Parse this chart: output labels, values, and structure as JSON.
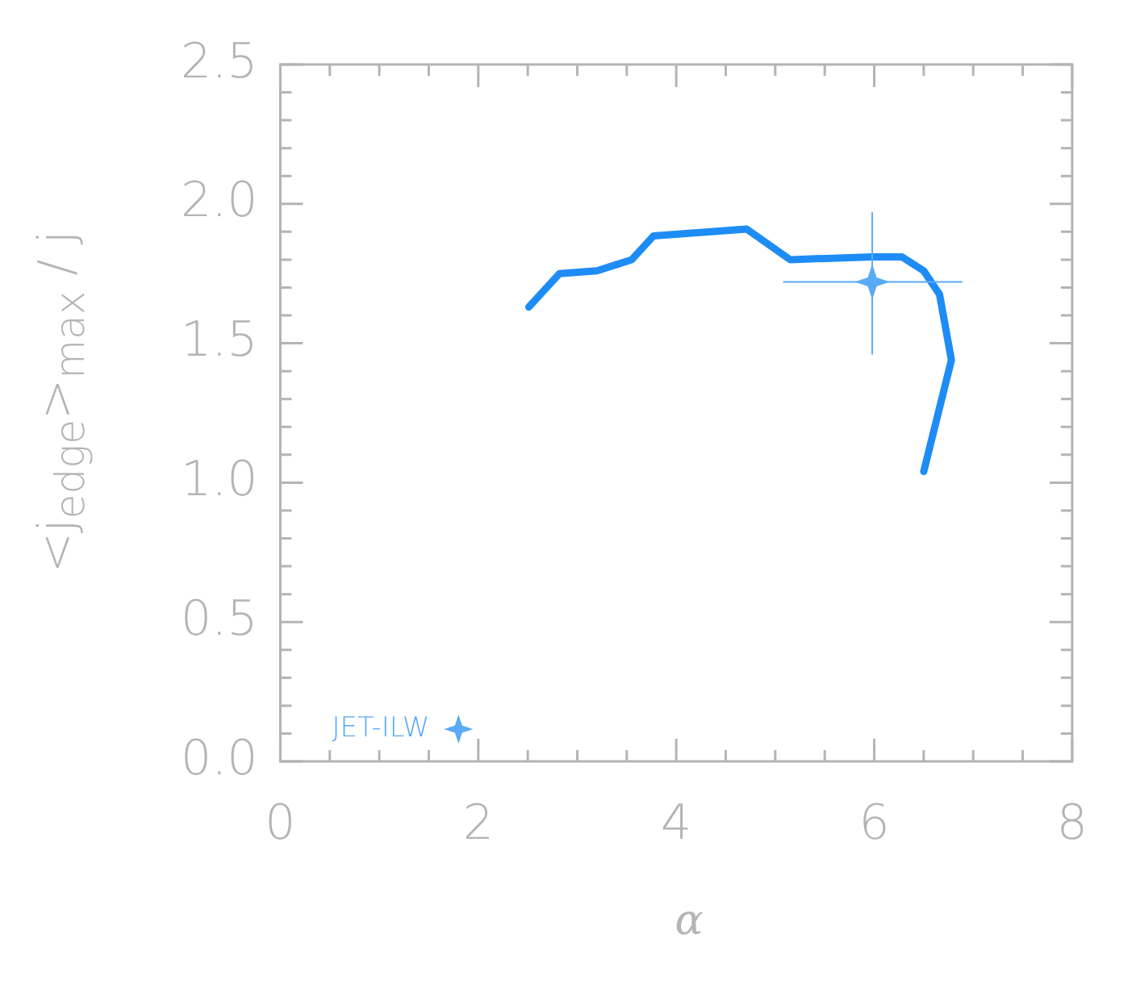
{
  "chart_data": {
    "type": "line",
    "xlabel": "α",
    "ylabel": "<j$_{edge}$>$_{max}$ / j",
    "xlim": [
      0,
      8
    ],
    "ylim": [
      0,
      2.5
    ],
    "xticks": [
      0,
      {
        "value": 0.5,
        "label": null
      },
      {
        "value": 1,
        "label": null
      },
      {
        "value": 1.5,
        "label": null
      },
      2,
      {
        "value": 2.5,
        "label": null
      },
      {
        "value": 3,
        "label": null
      },
      {
        "value": 3.5,
        "label": null
      },
      4,
      {
        "value": 4.5,
        "label": null
      },
      {
        "value": 5,
        "label": null
      },
      {
        "value": 5.5,
        "label": null
      },
      6,
      {
        "value": 6.5,
        "label": null
      },
      {
        "value": 7,
        "label": null
      },
      {
        "value": 7.5,
        "label": null
      },
      8
    ],
    "yticks": [
      {
        "value": 0,
        "label": "0.0"
      },
      {
        "value": 0.1,
        "label": null
      },
      {
        "value": 0.2,
        "label": null
      },
      {
        "value": 0.3,
        "label": null
      },
      {
        "value": 0.4,
        "label": null
      },
      0.5,
      {
        "value": 0.6,
        "label": null
      },
      {
        "value": 0.7,
        "label": null
      },
      {
        "value": 0.8,
        "label": null
      },
      {
        "value": 0.9,
        "label": null
      },
      {
        "value": 1,
        "label": "1.0"
      },
      {
        "value": 1.1,
        "label": null
      },
      {
        "value": 1.2,
        "label": null
      },
      {
        "value": 1.3,
        "label": null
      },
      {
        "value": 1.4,
        "label": null
      },
      1.5,
      {
        "value": 1.6,
        "label": null
      },
      {
        "value": 1.7,
        "label": null
      },
      {
        "value": 1.8,
        "label": null
      },
      {
        "value": 1.9,
        "label": null
      },
      {
        "value": 2,
        "label": "2.0"
      },
      {
        "value": 2.1,
        "label": null
      },
      {
        "value": 2.2,
        "label": null
      },
      {
        "value": 2.3,
        "label": null
      },
      {
        "value": 2.4,
        "label": null
      },
      2.5
    ],
    "grid": false,
    "legend": "bottom left",
    "series": [
      {
        "color": "#1e8cf5",
        "marker": "none",
        "line_style": "solid",
        "x": [
          2.51,
          2.82,
          3.2,
          3.55,
          3.77,
          4.71,
          5.15,
          5.98,
          6.28,
          6.5,
          6.66,
          6.78,
          6.5
        ],
        "values": [
          1.63,
          1.75,
          1.76,
          1.8,
          1.885,
          1.91,
          1.8,
          1.81,
          1.81,
          1.76,
          1.675,
          1.44,
          1.04
        ]
      },
      {
        "type": "scatter",
        "name": "JET-ILW",
        "color": "#5aaaf5",
        "marker": "star",
        "x": [
          5.98
        ],
        "values": [
          1.72
        ],
        "errors": [
          [
            1.46,
            1.97
          ]
        ],
        "xerrors": [
          [
            5.08,
            6.89
          ]
        ]
      }
    ]
  }
}
